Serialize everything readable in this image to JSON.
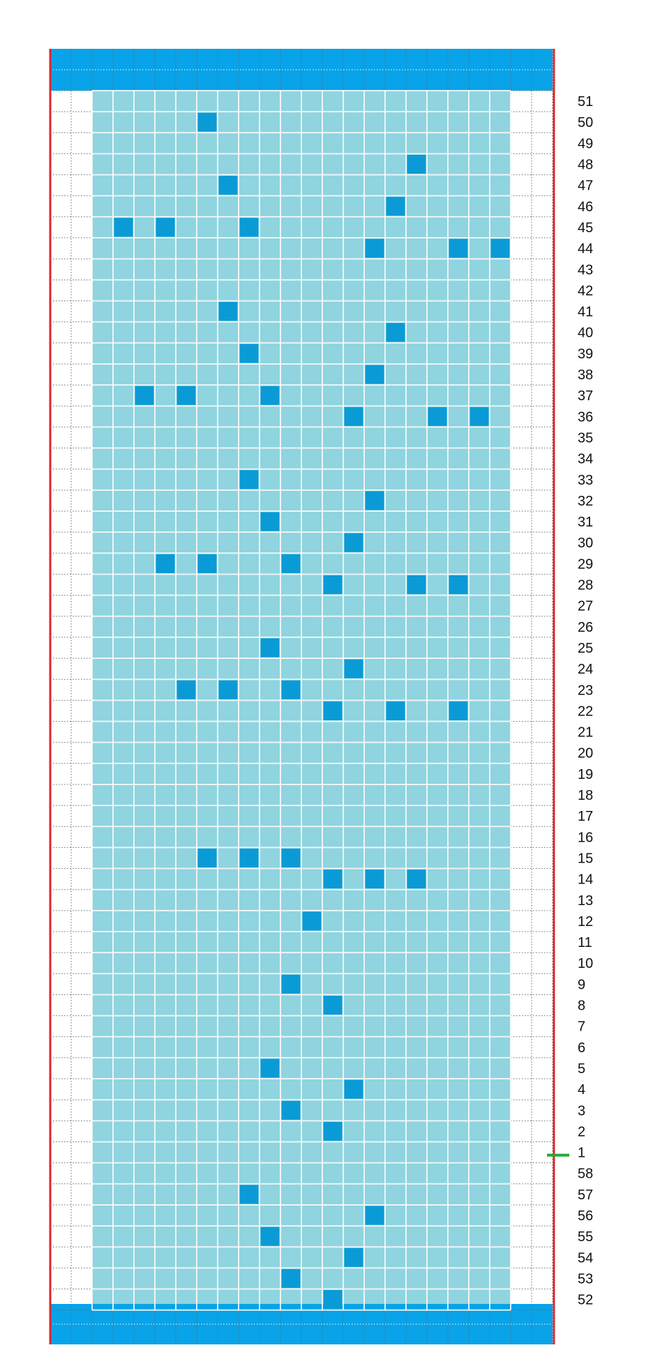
{
  "chart_data": {
    "type": "heatmap",
    "grid": {
      "columns": 24,
      "pattern_columns_start": 3,
      "pattern_columns_end": 22
    },
    "row_labels": [
      "51",
      "50",
      "49",
      "48",
      "47",
      "46",
      "45",
      "44",
      "43",
      "42",
      "41",
      "40",
      "39",
      "38",
      "37",
      "36",
      "35",
      "34",
      "33",
      "32",
      "31",
      "30",
      "29",
      "28",
      "27",
      "26",
      "25",
      "24",
      "23",
      "22",
      "21",
      "20",
      "19",
      "18",
      "17",
      "16",
      "15",
      "14",
      "13",
      "12",
      "11",
      "10",
      "9",
      "8",
      "7",
      "6",
      "5",
      "4",
      "3",
      "2",
      "1",
      "58",
      "57",
      "56",
      "55",
      "54",
      "53",
      "52"
    ],
    "filled_cells": [
      {
        "row": "50",
        "col": 8
      },
      {
        "row": "48",
        "col": 18
      },
      {
        "row": "47",
        "col": 9
      },
      {
        "row": "46",
        "col": 17
      },
      {
        "row": "45",
        "col": 4
      },
      {
        "row": "45",
        "col": 6
      },
      {
        "row": "45",
        "col": 10
      },
      {
        "row": "44",
        "col": 16
      },
      {
        "row": "44",
        "col": 20
      },
      {
        "row": "44",
        "col": 22
      },
      {
        "row": "41",
        "col": 9
      },
      {
        "row": "40",
        "col": 17
      },
      {
        "row": "39",
        "col": 10
      },
      {
        "row": "38",
        "col": 16
      },
      {
        "row": "37",
        "col": 5
      },
      {
        "row": "37",
        "col": 7
      },
      {
        "row": "37",
        "col": 11
      },
      {
        "row": "36",
        "col": 15
      },
      {
        "row": "36",
        "col": 19
      },
      {
        "row": "36",
        "col": 21
      },
      {
        "row": "33",
        "col": 10
      },
      {
        "row": "32",
        "col": 16
      },
      {
        "row": "31",
        "col": 11
      },
      {
        "row": "30",
        "col": 15
      },
      {
        "row": "29",
        "col": 6
      },
      {
        "row": "29",
        "col": 8
      },
      {
        "row": "29",
        "col": 12
      },
      {
        "row": "28",
        "col": 14
      },
      {
        "row": "28",
        "col": 18
      },
      {
        "row": "28",
        "col": 20
      },
      {
        "row": "25",
        "col": 11
      },
      {
        "row": "24",
        "col": 15
      },
      {
        "row": "23",
        "col": 7
      },
      {
        "row": "23",
        "col": 9
      },
      {
        "row": "23",
        "col": 12
      },
      {
        "row": "22",
        "col": 14
      },
      {
        "row": "22",
        "col": 17
      },
      {
        "row": "22",
        "col": 20
      },
      {
        "row": "15",
        "col": 8
      },
      {
        "row": "15",
        "col": 10
      },
      {
        "row": "15",
        "col": 12
      },
      {
        "row": "14",
        "col": 14
      },
      {
        "row": "14",
        "col": 16
      },
      {
        "row": "14",
        "col": 18
      },
      {
        "row": "12",
        "col": 13
      },
      {
        "row": "9",
        "col": 12
      },
      {
        "row": "8",
        "col": 14
      },
      {
        "row": "5",
        "col": 11
      },
      {
        "row": "4",
        "col": 15
      },
      {
        "row": "3",
        "col": 12
      },
      {
        "row": "2",
        "col": 14
      },
      {
        "row": "57",
        "col": 10
      },
      {
        "row": "56",
        "col": 16
      },
      {
        "row": "55",
        "col": 11
      },
      {
        "row": "54",
        "col": 15
      },
      {
        "row": "53",
        "col": 12
      },
      {
        "row": "52",
        "col": 14
      }
    ],
    "marked_row": "1",
    "colors": {
      "band": "#08a3e8",
      "pattern_background": "#8fd4df",
      "filled_cell": "#0a9bd6",
      "border": "#e0262a",
      "grid_line": "#5e6c78",
      "marker": "#22aa33"
    }
  }
}
